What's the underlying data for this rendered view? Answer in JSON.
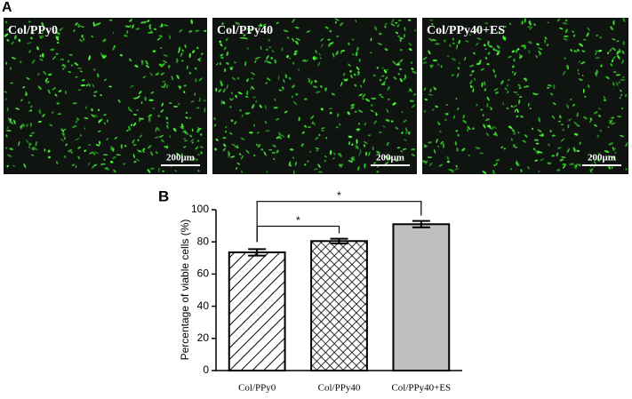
{
  "panel_a": {
    "label": "A",
    "images": [
      {
        "label": "Col/PPy0",
        "scale_bar": "200μm"
      },
      {
        "label": "Col/PPy40",
        "scale_bar": "200μm"
      },
      {
        "label": "Col/PPy40+ES",
        "scale_bar": "200μm"
      }
    ]
  },
  "chart_data": {
    "type": "bar",
    "panel_label": "B",
    "ylabel": "Percentage of viable cells (%)",
    "categories": [
      "Col/PPy0",
      "Col/PPy40",
      "Col/PPy40+ES"
    ],
    "values": [
      73.5,
      80.5,
      91
    ],
    "errors": [
      2,
      1.5,
      2
    ],
    "colors": [
      "#ffffff",
      "#ffffff",
      "#bfbfbf"
    ],
    "patterns": [
      "diagonal",
      "crosshatch",
      "none"
    ],
    "ylim": [
      0,
      100
    ],
    "yticks": [
      0,
      20,
      40,
      60,
      80,
      100
    ],
    "annotations": [
      {
        "text": "*",
        "from": 0,
        "to": 1
      },
      {
        "text": "*",
        "from": 0,
        "to": 2
      }
    ]
  }
}
